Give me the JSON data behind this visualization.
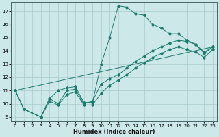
{
  "xlabel": "Humidex (Indice chaleur)",
  "bg_color": "#cce8e8",
  "line_color": "#1a7a6e",
  "grid_color": "#aacccc",
  "xlim": [
    -0.5,
    23.5
  ],
  "ylim": [
    8.7,
    17.7
  ],
  "xticks": [
    0,
    1,
    2,
    3,
    4,
    5,
    6,
    7,
    8,
    9,
    10,
    11,
    12,
    13,
    14,
    15,
    16,
    17,
    18,
    19,
    20,
    21,
    22,
    23
  ],
  "yticks": [
    9,
    10,
    11,
    12,
    13,
    14,
    15,
    16,
    17
  ],
  "lines": [
    {
      "x": [
        0,
        1,
        3,
        4,
        5,
        6,
        7,
        8,
        9,
        10,
        11,
        12,
        13,
        14,
        15,
        16,
        17,
        18,
        19,
        20,
        21,
        22,
        23
      ],
      "y": [
        11.0,
        9.6,
        9.0,
        10.4,
        11.0,
        11.2,
        11.3,
        10.1,
        10.1,
        13.0,
        15.0,
        17.4,
        17.3,
        16.8,
        16.7,
        16.0,
        15.7,
        15.3,
        15.3,
        14.8,
        14.5,
        13.8,
        14.3
      ],
      "marker": true
    },
    {
      "x": [
        0,
        1,
        3,
        4,
        5,
        6,
        7,
        8,
        9,
        10,
        11,
        12,
        13,
        14,
        15,
        16,
        17,
        18,
        19,
        20,
        21,
        22,
        23
      ],
      "y": [
        11.0,
        9.6,
        9.0,
        10.4,
        10.0,
        11.0,
        11.1,
        10.0,
        10.2,
        11.5,
        11.9,
        12.2,
        12.7,
        13.2,
        13.6,
        14.0,
        14.3,
        14.6,
        14.8,
        14.7,
        14.5,
        13.9,
        14.3
      ],
      "marker": true
    },
    {
      "x": [
        0,
        1,
        3,
        4,
        5,
        6,
        7,
        8,
        9,
        10,
        11,
        12,
        13,
        14,
        15,
        16,
        17,
        18,
        19,
        20,
        21,
        22,
        23
      ],
      "y": [
        11.0,
        9.6,
        9.0,
        10.2,
        9.9,
        10.7,
        10.9,
        9.9,
        9.9,
        10.8,
        11.4,
        11.8,
        12.2,
        12.7,
        13.1,
        13.5,
        13.8,
        14.1,
        14.3,
        14.1,
        13.9,
        13.5,
        14.1
      ],
      "marker": true
    },
    {
      "x": [
        0,
        23
      ],
      "y": [
        11.0,
        14.3
      ],
      "marker": false
    }
  ]
}
